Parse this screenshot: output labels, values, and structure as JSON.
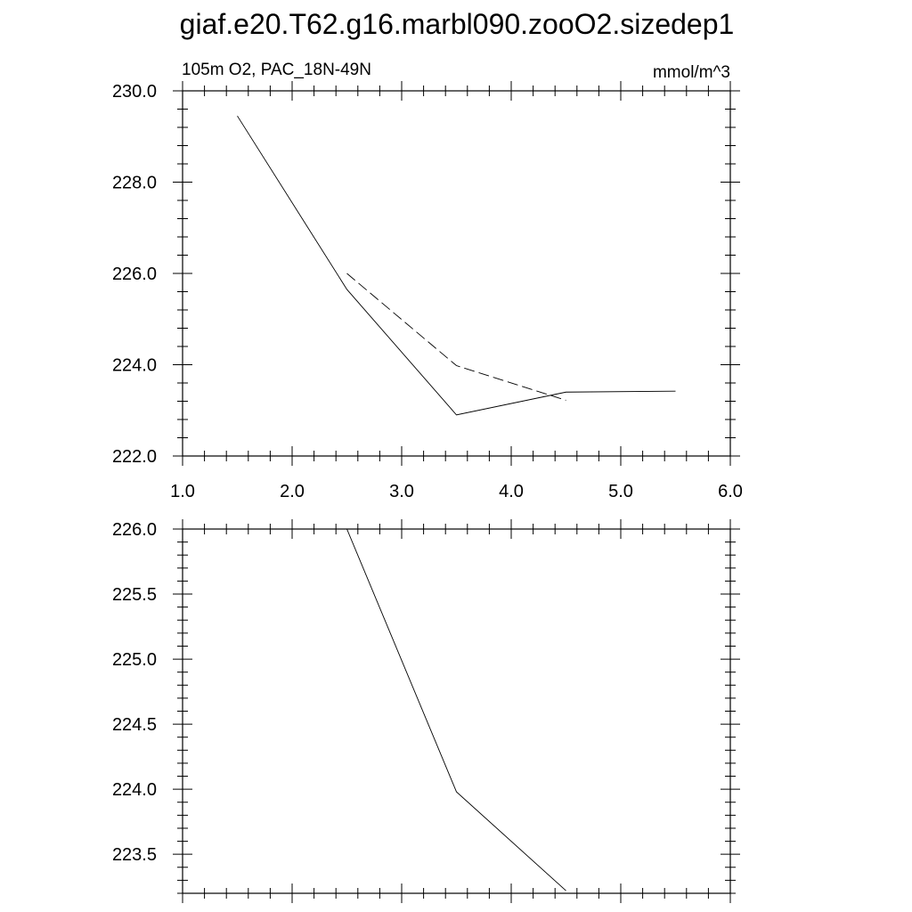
{
  "title": "giaf.e20.T62.g16.marbl090.zooO2.sizedep1",
  "chart_data": [
    {
      "type": "line",
      "left_label": "105m O2, PAC_18N-49N",
      "right_label": "mmol/m^3",
      "xlim": [
        1.0,
        6.0
      ],
      "ylim": [
        222.0,
        230.0
      ],
      "x_tick_labels": [
        "1.0",
        "2.0",
        "3.0",
        "4.0",
        "5.0",
        "6.0"
      ],
      "y_tick_labels": [
        "222.0",
        "224.0",
        "226.0",
        "228.0",
        "230.0"
      ],
      "series": [
        {
          "style": "solid",
          "x": [
            1.5,
            2.5,
            3.5,
            4.5,
            5.5
          ],
          "y": [
            229.45,
            225.65,
            222.9,
            223.4,
            223.42
          ]
        },
        {
          "style": "dashed",
          "x": [
            2.5,
            3.5,
            4.5
          ],
          "y": [
            226.0,
            223.98,
            223.22
          ]
        }
      ]
    },
    {
      "type": "line",
      "xlim": [
        1.0,
        6.0
      ],
      "ylim": [
        223.2,
        226.0
      ],
      "y_tick_labels": [
        "223.5",
        "224.0",
        "224.5",
        "225.0",
        "225.5",
        "226.0"
      ],
      "series": [
        {
          "style": "solid",
          "x": [
            2.5,
            3.5,
            4.5
          ],
          "y": [
            226.0,
            223.98,
            223.22
          ]
        }
      ]
    }
  ]
}
